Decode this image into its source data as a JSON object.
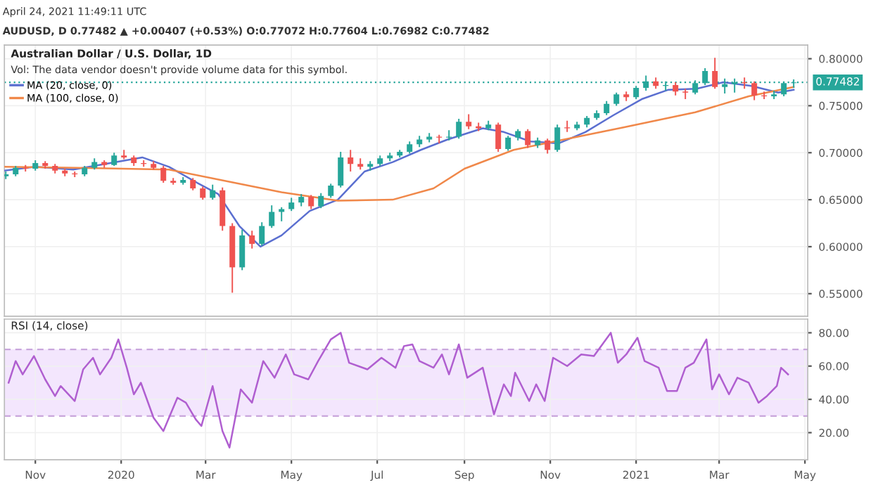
{
  "chart_data": [
    {
      "type": "candlestick",
      "title": "Australian Dollar / U.S. Dollar, 1D",
      "annotations": [
        "April 24, 2021 11:49:11 UTC",
        "AUDUSD, D 0.77482 ▲ +0.00407 (+0.53%) O:0.77072 H:0.77604 L:0.76982 C:0.77482",
        "Vol: The data vendor doesn't provide volume data for this symbol."
      ],
      "x": [
        "2019-10-11",
        "2019-10-18",
        "2019-10-25",
        "2019-11-01",
        "2019-11-08",
        "2019-11-15",
        "2019-11-22",
        "2019-11-29",
        "2019-12-06",
        "2019-12-13",
        "2019-12-20",
        "2019-12-27",
        "2020-01-03",
        "2020-01-10",
        "2020-01-17",
        "2020-01-24",
        "2020-01-31",
        "2020-02-07",
        "2020-02-14",
        "2020-02-21",
        "2020-02-28",
        "2020-03-06",
        "2020-03-13",
        "2020-03-20",
        "2020-03-27",
        "2020-04-03",
        "2020-04-10",
        "2020-04-17",
        "2020-04-24",
        "2020-05-01",
        "2020-05-08",
        "2020-05-15",
        "2020-05-22",
        "2020-05-29",
        "2020-06-05",
        "2020-06-12",
        "2020-06-19",
        "2020-06-26",
        "2020-07-03",
        "2020-07-10",
        "2020-07-17",
        "2020-07-24",
        "2020-07-31",
        "2020-08-07",
        "2020-08-14",
        "2020-08-21",
        "2020-08-28",
        "2020-09-04",
        "2020-09-11",
        "2020-09-18",
        "2020-09-25",
        "2020-10-02",
        "2020-10-09",
        "2020-10-16",
        "2020-10-23",
        "2020-10-30",
        "2020-11-06",
        "2020-11-13",
        "2020-11-20",
        "2020-11-27",
        "2020-12-04",
        "2020-12-11",
        "2020-12-18",
        "2020-12-25",
        "2021-01-01",
        "2021-01-08",
        "2021-01-15",
        "2021-01-22",
        "2021-01-29",
        "2021-02-05",
        "2021-02-12",
        "2021-02-19",
        "2021-02-26",
        "2021-03-05",
        "2021-03-12",
        "2021-03-19",
        "2021-03-26",
        "2021-04-02",
        "2021-04-09",
        "2021-04-16",
        "2021-04-23"
      ],
      "ohlc": [
        [
          0.675,
          0.68,
          0.672,
          0.677
        ],
        [
          0.677,
          0.686,
          0.675,
          0.684
        ],
        [
          0.684,
          0.687,
          0.68,
          0.683
        ],
        [
          0.683,
          0.692,
          0.681,
          0.689
        ],
        [
          0.689,
          0.691,
          0.683,
          0.686
        ],
        [
          0.686,
          0.688,
          0.678,
          0.681
        ],
        [
          0.681,
          0.683,
          0.675,
          0.678
        ],
        [
          0.678,
          0.68,
          0.674,
          0.677
        ],
        [
          0.677,
          0.686,
          0.675,
          0.684
        ],
        [
          0.684,
          0.694,
          0.682,
          0.69
        ],
        [
          0.69,
          0.692,
          0.684,
          0.687
        ],
        [
          0.687,
          0.7,
          0.686,
          0.697
        ],
        [
          0.697,
          0.703,
          0.693,
          0.695
        ],
        [
          0.695,
          0.697,
          0.686,
          0.689
        ],
        [
          0.689,
          0.692,
          0.685,
          0.688
        ],
        [
          0.688,
          0.691,
          0.682,
          0.684
        ],
        [
          0.684,
          0.686,
          0.668,
          0.67
        ],
        [
          0.67,
          0.673,
          0.666,
          0.668
        ],
        [
          0.668,
          0.674,
          0.666,
          0.671
        ],
        [
          0.671,
          0.673,
          0.66,
          0.662
        ],
        [
          0.662,
          0.664,
          0.65,
          0.652
        ],
        [
          0.652,
          0.666,
          0.65,
          0.66
        ],
        [
          0.66,
          0.663,
          0.617,
          0.622
        ],
        [
          0.622,
          0.625,
          0.551,
          0.578
        ],
        [
          0.578,
          0.618,
          0.575,
          0.612
        ],
        [
          0.612,
          0.617,
          0.598,
          0.603
        ],
        [
          0.603,
          0.626,
          0.601,
          0.622
        ],
        [
          0.622,
          0.644,
          0.62,
          0.637
        ],
        [
          0.637,
          0.642,
          0.627,
          0.64
        ],
        [
          0.64,
          0.652,
          0.638,
          0.647
        ],
        [
          0.647,
          0.656,
          0.643,
          0.653
        ],
        [
          0.653,
          0.655,
          0.64,
          0.643
        ],
        [
          0.643,
          0.657,
          0.641,
          0.654
        ],
        [
          0.654,
          0.667,
          0.652,
          0.665
        ],
        [
          0.665,
          0.701,
          0.663,
          0.695
        ],
        [
          0.695,
          0.703,
          0.68,
          0.688
        ],
        [
          0.688,
          0.694,
          0.682,
          0.685
        ],
        [
          0.685,
          0.691,
          0.681,
          0.688
        ],
        [
          0.688,
          0.697,
          0.686,
          0.694
        ],
        [
          0.694,
          0.7,
          0.691,
          0.697
        ],
        [
          0.697,
          0.703,
          0.695,
          0.701
        ],
        [
          0.701,
          0.712,
          0.699,
          0.709
        ],
        [
          0.709,
          0.718,
          0.706,
          0.714
        ],
        [
          0.714,
          0.721,
          0.711,
          0.717
        ],
        [
          0.717,
          0.719,
          0.71,
          0.716
        ],
        [
          0.716,
          0.724,
          0.713,
          0.717
        ],
        [
          0.717,
          0.736,
          0.715,
          0.733
        ],
        [
          0.733,
          0.741,
          0.725,
          0.728
        ],
        [
          0.728,
          0.732,
          0.723,
          0.726
        ],
        [
          0.726,
          0.734,
          0.724,
          0.73
        ],
        [
          0.73,
          0.732,
          0.701,
          0.704
        ],
        [
          0.704,
          0.718,
          0.702,
          0.716
        ],
        [
          0.716,
          0.725,
          0.713,
          0.723
        ],
        [
          0.723,
          0.725,
          0.705,
          0.708
        ],
        [
          0.708,
          0.716,
          0.705,
          0.713
        ],
        [
          0.713,
          0.715,
          0.699,
          0.703
        ],
        [
          0.703,
          0.73,
          0.701,
          0.727
        ],
        [
          0.727,
          0.734,
          0.722,
          0.726
        ],
        [
          0.726,
          0.733,
          0.724,
          0.73
        ],
        [
          0.73,
          0.739,
          0.727,
          0.737
        ],
        [
          0.737,
          0.745,
          0.735,
          0.742
        ],
        [
          0.742,
          0.755,
          0.74,
          0.752
        ],
        [
          0.752,
          0.764,
          0.75,
          0.762
        ],
        [
          0.762,
          0.765,
          0.755,
          0.759
        ],
        [
          0.759,
          0.771,
          0.757,
          0.769
        ],
        [
          0.769,
          0.782,
          0.766,
          0.776
        ],
        [
          0.776,
          0.78,
          0.768,
          0.771
        ],
        [
          0.771,
          0.776,
          0.766,
          0.772
        ],
        [
          0.772,
          0.775,
          0.761,
          0.765
        ],
        [
          0.765,
          0.768,
          0.757,
          0.764
        ],
        [
          0.764,
          0.777,
          0.762,
          0.774
        ],
        [
          0.774,
          0.79,
          0.772,
          0.787
        ],
        [
          0.787,
          0.801,
          0.768,
          0.77
        ],
        [
          0.77,
          0.779,
          0.763,
          0.773
        ],
        [
          0.773,
          0.779,
          0.764,
          0.775
        ],
        [
          0.775,
          0.78,
          0.768,
          0.774
        ],
        [
          0.774,
          0.776,
          0.756,
          0.761
        ],
        [
          0.761,
          0.765,
          0.757,
          0.76
        ],
        [
          0.76,
          0.766,
          0.757,
          0.762
        ],
        [
          0.762,
          0.776,
          0.76,
          0.774
        ],
        [
          0.774,
          0.778,
          0.769,
          0.7748
        ]
      ],
      "colors": [
        "#26a69a",
        "#26a69a",
        "#ef5350",
        "#26a69a",
        "#ef5350",
        "#ef5350",
        "#ef5350",
        "#ef5350",
        "#26a69a",
        "#26a69a",
        "#ef5350",
        "#26a69a",
        "#ef5350",
        "#ef5350",
        "#ef5350",
        "#ef5350",
        "#ef5350",
        "#ef5350",
        "#26a69a",
        "#ef5350",
        "#ef5350",
        "#26a69a",
        "#ef5350",
        "#ef5350",
        "#26a69a",
        "#ef5350",
        "#26a69a",
        "#26a69a",
        "#26a69a",
        "#26a69a",
        "#26a69a",
        "#ef5350",
        "#26a69a",
        "#26a69a",
        "#26a69a",
        "#ef5350",
        "#ef5350",
        "#26a69a",
        "#26a69a",
        "#26a69a",
        "#26a69a",
        "#26a69a",
        "#26a69a",
        "#26a69a",
        "#ef5350",
        "#26a69a",
        "#26a69a",
        "#ef5350",
        "#ef5350",
        "#26a69a",
        "#ef5350",
        "#26a69a",
        "#26a69a",
        "#ef5350",
        "#26a69a",
        "#ef5350",
        "#26a69a",
        "#ef5350",
        "#26a69a",
        "#26a69a",
        "#26a69a",
        "#26a69a",
        "#26a69a",
        "#ef5350",
        "#26a69a",
        "#26a69a",
        "#ef5350",
        "#26a69a",
        "#ef5350",
        "#ef5350",
        "#26a69a",
        "#26a69a",
        "#ef5350",
        "#26a69a",
        "#26a69a",
        "#ef5350",
        "#ef5350",
        "#ef5350",
        "#26a69a",
        "#26a69a",
        "#26a69a"
      ],
      "series": [
        {
          "name": "MA (20, close, 0)",
          "type": "line",
          "color": "#5b6fd0",
          "x": [
            "2019-10-10",
            "2019-11-01",
            "2019-11-28",
            "2020-01-01",
            "2020-01-16",
            "2020-02-04",
            "2020-02-24",
            "2020-03-10",
            "2020-03-25",
            "2020-04-09",
            "2020-04-24",
            "2020-05-14",
            "2020-06-03",
            "2020-06-22",
            "2020-07-12",
            "2020-08-01",
            "2020-08-20",
            "2020-09-14",
            "2020-09-29",
            "2020-10-18",
            "2020-11-07",
            "2020-11-26",
            "2020-12-16",
            "2021-01-05",
            "2021-01-24",
            "2021-02-13",
            "2021-03-04",
            "2021-03-24",
            "2021-04-12",
            "2021-04-23"
          ],
          "values": [
            0.681,
            0.685,
            0.682,
            0.691,
            0.695,
            0.685,
            0.668,
            0.656,
            0.622,
            0.6,
            0.612,
            0.638,
            0.65,
            0.68,
            0.69,
            0.703,
            0.714,
            0.726,
            0.722,
            0.712,
            0.71,
            0.722,
            0.74,
            0.757,
            0.767,
            0.768,
            0.775,
            0.771,
            0.764,
            0.767
          ]
        },
        {
          "name": "MA (100, close, 0)",
          "type": "line",
          "color": "#f0884a",
          "x": [
            "2019-10-10",
            "2019-12-01",
            "2020-02-04",
            "2020-04-24",
            "2020-06-03",
            "2020-07-12",
            "2020-08-10",
            "2020-09-01",
            "2020-10-06",
            "2020-11-04",
            "2020-12-23",
            "2021-02-12",
            "2021-03-22",
            "2021-04-23"
          ],
          "values": [
            0.685,
            0.684,
            0.682,
            0.658,
            0.649,
            0.65,
            0.662,
            0.683,
            0.703,
            0.712,
            0.727,
            0.743,
            0.76,
            0.77
          ]
        }
      ],
      "xlim": [
        "2019-10-10",
        "2021-05-03"
      ],
      "xticks": [
        {
          "value": "2019-11-01",
          "label": null
        },
        {
          "value": "2020-01-01",
          "label": null
        },
        {
          "value": "2020-03-01",
          "label": null
        },
        {
          "value": "2020-05-01",
          "label": null
        },
        {
          "value": "2020-07-01",
          "label": null
        },
        {
          "value": "2020-09-01",
          "label": null
        },
        {
          "value": "2020-11-01",
          "label": null
        },
        {
          "value": "2021-01-01",
          "label": null
        },
        {
          "value": "2021-03-01",
          "label": null
        },
        {
          "value": "2021-05-01",
          "label": null
        }
      ],
      "ylim": [
        0.526,
        0.8145
      ],
      "yticks": [
        {
          "value": 0.55,
          "label": "0.55000"
        },
        {
          "value": 0.6,
          "label": "0.60000"
        },
        {
          "value": 0.65,
          "label": "0.65000"
        },
        {
          "value": 0.7,
          "label": "0.70000"
        },
        {
          "value": 0.75,
          "label": "0.75000"
        },
        {
          "value": 0.8,
          "label": "0.80000"
        }
      ],
      "ref_lines": [
        {
          "axis": "y",
          "value": 0.77482,
          "label": "0.77482",
          "color": "#26a69a",
          "line_style": "dotted"
        }
      ],
      "grid": true,
      "legend": "top left",
      "tick_labels": "y"
    },
    {
      "type": "line",
      "title": "RSI (14, close)",
      "series": [
        {
          "color": "#b05fd0",
          "x": [
            "2019-10-13",
            "2019-10-18",
            "2019-10-23",
            "2019-10-31",
            "2019-11-08",
            "2019-11-15",
            "2019-11-19",
            "2019-11-29",
            "2019-12-05",
            "2019-12-12",
            "2019-12-17",
            "2019-12-25",
            "2019-12-30",
            "2020-01-05",
            "2020-01-10",
            "2020-01-15",
            "2020-01-24",
            "2020-01-31",
            "2020-02-10",
            "2020-02-16",
            "2020-02-23",
            "2020-02-27",
            "2020-03-06",
            "2020-03-13",
            "2020-03-18",
            "2020-03-26",
            "2020-04-03",
            "2020-04-11",
            "2020-04-19",
            "2020-04-27",
            "2020-05-03",
            "2020-05-13",
            "2020-05-20",
            "2020-05-29",
            "2020-06-05",
            "2020-06-11",
            "2020-06-24",
            "2020-07-04",
            "2020-07-14",
            "2020-07-20",
            "2020-07-26",
            "2020-07-31",
            "2020-08-10",
            "2020-08-16",
            "2020-08-21",
            "2020-08-28",
            "2020-09-03",
            "2020-09-14",
            "2020-09-22",
            "2020-09-29",
            "2020-10-04",
            "2020-10-07",
            "2020-10-17",
            "2020-10-22",
            "2020-10-28",
            "2020-11-03",
            "2020-11-13",
            "2020-11-23",
            "2020-12-02",
            "2020-12-14",
            "2020-12-19",
            "2020-12-25",
            "2021-01-02",
            "2021-01-07",
            "2021-01-17",
            "2021-01-23",
            "2021-01-30",
            "2021-02-05",
            "2021-02-11",
            "2021-02-20",
            "2021-02-24",
            "2021-03-01",
            "2021-03-08",
            "2021-03-14",
            "2021-03-22",
            "2021-03-29",
            "2021-04-04",
            "2021-04-11",
            "2021-04-14",
            "2021-04-19"
          ],
          "values": [
            50,
            63,
            55,
            66,
            52,
            42,
            48,
            39,
            58,
            65,
            55,
            65,
            76,
            59,
            43,
            50,
            29,
            21,
            41,
            38,
            28,
            24,
            48,
            21,
            11,
            46,
            38,
            63,
            53,
            67,
            55,
            52,
            63,
            76,
            80,
            62,
            58,
            65,
            59,
            72,
            73,
            63,
            59,
            67,
            55,
            73,
            53,
            59,
            31,
            49,
            42,
            56,
            39,
            49,
            39,
            65,
            60,
            67,
            66,
            80,
            62,
            67,
            77,
            63,
            59,
            45,
            45,
            59,
            62,
            76,
            46,
            55,
            43,
            53,
            50,
            38,
            42,
            48,
            59,
            55
          ]
        }
      ],
      "xlim": [
        "2019-10-10",
        "2021-05-03"
      ],
      "xticks": [
        {
          "value": "2019-11-01",
          "label": "Nov"
        },
        {
          "value": "2020-01-01",
          "label": "2020"
        },
        {
          "value": "2020-03-01",
          "label": "Mar"
        },
        {
          "value": "2020-05-01",
          "label": "May"
        },
        {
          "value": "2020-07-01",
          "label": "Jul"
        },
        {
          "value": "2020-09-01",
          "label": "Sep"
        },
        {
          "value": "2020-11-01",
          "label": "Nov"
        },
        {
          "value": "2021-01-01",
          "label": "2021"
        },
        {
          "value": "2021-03-01",
          "label": "Mar"
        },
        {
          "value": "2021-05-01",
          "label": "May"
        }
      ],
      "ylim": [
        3.7,
        88.2
      ],
      "yticks": [
        {
          "value": 20,
          "label": "20.00"
        },
        {
          "value": 40,
          "label": "40.00"
        },
        {
          "value": 60,
          "label": "60.00"
        },
        {
          "value": 80,
          "label": "80.00"
        }
      ],
      "bands": [
        {
          "axis": "y",
          "from": 30,
          "to": 70,
          "color": "#f3e6fd"
        }
      ],
      "ref_lines": [
        {
          "axis": "y",
          "value": 30,
          "color": "#c9a6dc",
          "line_style": "dashed"
        },
        {
          "axis": "y",
          "value": 70,
          "color": "#c9a6dc",
          "line_style": "dashed"
        }
      ],
      "grid": true
    }
  ]
}
